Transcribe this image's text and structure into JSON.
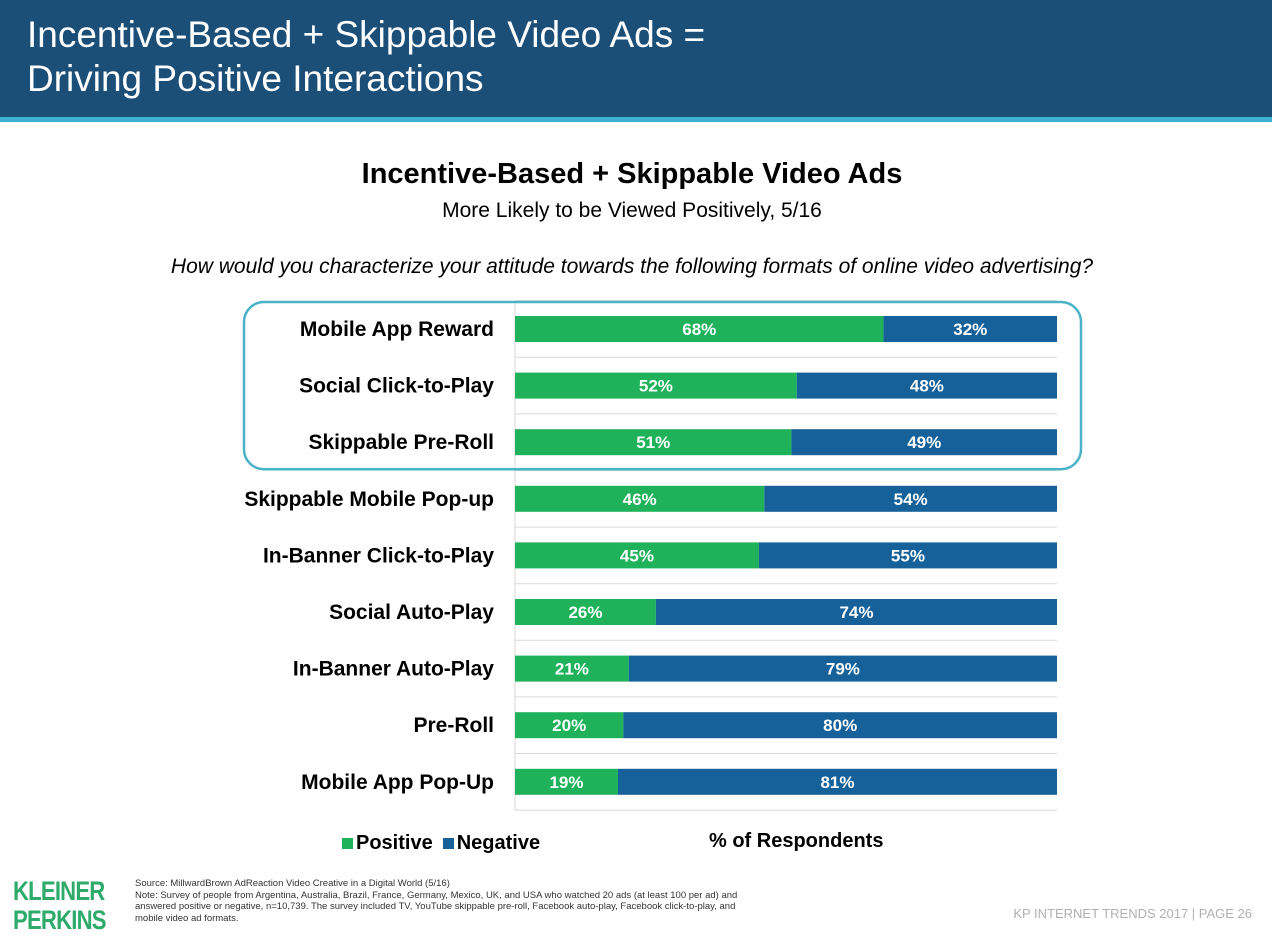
{
  "header": {
    "title_line1": "Incentive-Based + Skippable Video Ads =",
    "title_line2": "Driving Positive Interactions"
  },
  "chart_data": {
    "type": "bar",
    "orientation": "horizontal",
    "stacked": true,
    "title": "Incentive-Based + Skippable Video Ads",
    "subtitle": "More Likely to be Viewed Positively, 5/16",
    "question": "How would you characterize your attitude towards the following formats of online video advertising?",
    "categories": [
      "Mobile App Reward",
      "Social Click-to-Play",
      "Skippable Pre-Roll",
      "Skippable Mobile Pop-up",
      "In-Banner Click-to-Play",
      "Social Auto-Play",
      "In-Banner Auto-Play",
      "Pre-Roll",
      "Mobile App Pop-Up"
    ],
    "series": [
      {
        "name": "Positive",
        "color": "#1fb25a",
        "values": [
          68,
          52,
          51,
          46,
          45,
          26,
          21,
          20,
          19
        ]
      },
      {
        "name": "Negative",
        "color": "#17619b",
        "values": [
          32,
          48,
          49,
          54,
          55,
          74,
          79,
          80,
          81
        ]
      }
    ],
    "value_suffix": "%",
    "xlim": [
      0,
      100
    ],
    "xlabel": "% of Respondents",
    "legend_position": "bottom-left",
    "highlighted_categories": [
      "Mobile App Reward",
      "Social Click-to-Play",
      "Skippable Pre-Roll"
    ],
    "highlight_color": "#4ab3c8",
    "grid": true
  },
  "legend": {
    "positive_label": "Positive",
    "negative_label": "Negative"
  },
  "footer": {
    "logo_line1": "KLEINER",
    "logo_line2": "PERKINS",
    "source": "Source: MillwardBrown AdReaction Video Creative in a Digital World (5/16)",
    "note_line1": "Note: Survey of people from Argentina, Australia, Brazil, France, Germany, Mexico, UK, and USA who watched 20 ads (at least 100 per ad) and",
    "note_line2": "answered positive or negative, n=10,739. The survey included TV, YouTube skippable pre-roll, Facebook auto-play, Facebook click-to-play, and",
    "note_line3": "mobile video ad formats.",
    "page_ref": "KP INTERNET TRENDS 2017 | PAGE 26"
  }
}
